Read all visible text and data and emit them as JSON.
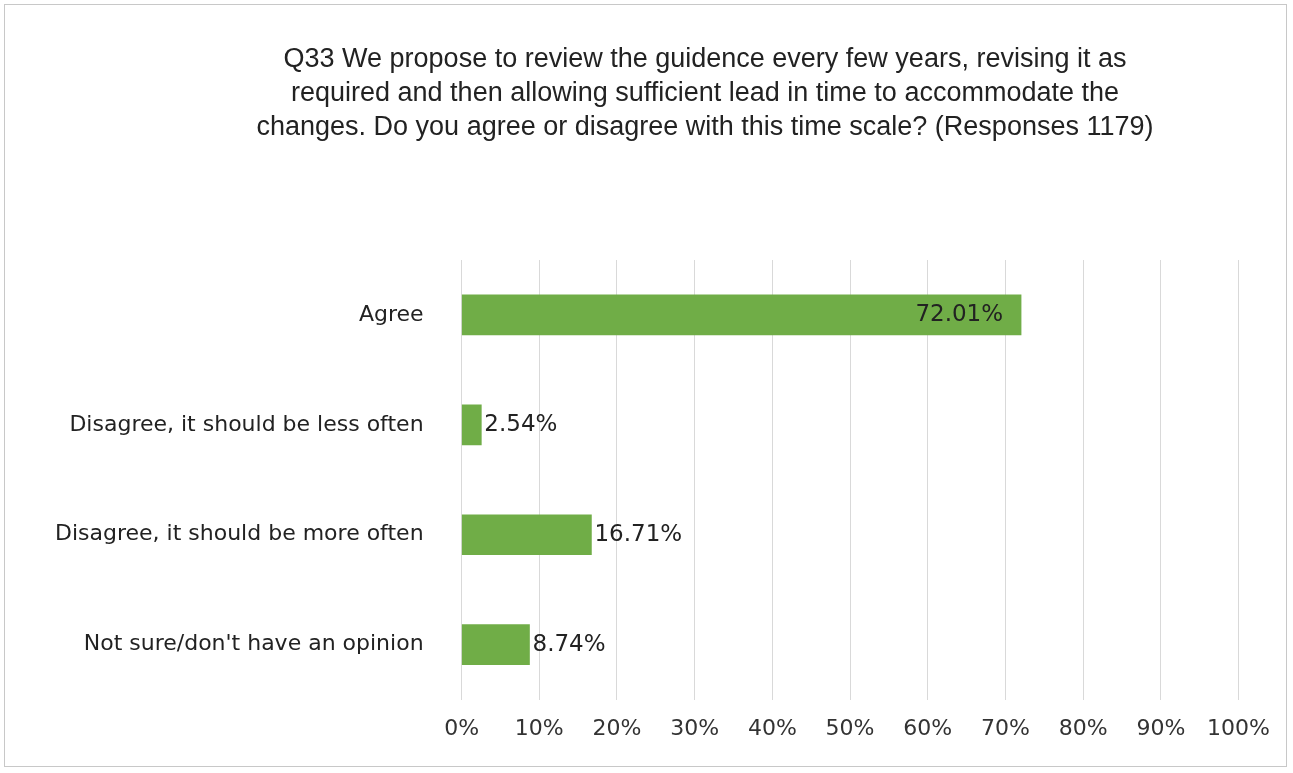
{
  "chart_data": {
    "type": "bar",
    "orientation": "horizontal",
    "title": "Q33 We propose to review the guidence every few years, revising it as required and then allowing sufficient lead in time to accommodate the changes. Do you agree or disagree with this time scale? (Responses 1179)",
    "categories": [
      "Agree",
      "Disagree, it should be less often",
      "Disagree, it should be more often",
      "Not sure/don't have an opinion"
    ],
    "values": [
      72.01,
      2.54,
      16.71,
      8.74
    ],
    "value_labels": [
      "72.01%",
      "2.54%",
      "16.71%",
      "8.74%"
    ],
    "color": "#70ad47",
    "xlim": [
      0,
      100
    ],
    "xticks": [
      {
        "value": 0,
        "label": "0%"
      },
      {
        "value": 10,
        "label": "10%"
      },
      {
        "value": 20,
        "label": "20%"
      },
      {
        "value": 30,
        "label": "30%"
      },
      {
        "value": 40,
        "label": "40%"
      },
      {
        "value": 50,
        "label": "50%"
      },
      {
        "value": 60,
        "label": "60%"
      },
      {
        "value": 70,
        "label": "70%"
      },
      {
        "value": 80,
        "label": "80%"
      },
      {
        "value": 90,
        "label": "90%"
      },
      {
        "value": 100,
        "label": "100%"
      }
    ],
    "grid": "x",
    "legend": false
  }
}
